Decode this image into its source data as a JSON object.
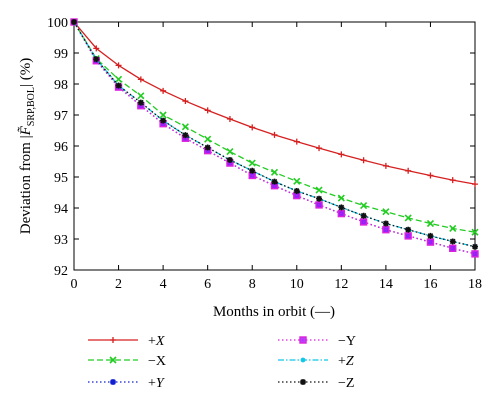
{
  "chart_data": {
    "type": "line",
    "xlabel": "Months in orbit (—)",
    "ylabel": "Deviation from |F̃|SRP,BOL (%)",
    "ylabel_main": "Deviation from |",
    "ylabel_symbol": "F̃",
    "ylabel_sub": "SRP,BOL",
    "ylabel_tail": "| (%)",
    "xlim": [
      0,
      18
    ],
    "ylim": [
      92,
      100
    ],
    "xticks": [
      0,
      2,
      4,
      6,
      8,
      10,
      12,
      14,
      16,
      18
    ],
    "yticks": [
      92,
      93,
      94,
      95,
      96,
      97,
      98,
      99,
      100
    ],
    "grid": false,
    "legend_position": "below",
    "x": [
      0,
      1,
      2,
      3,
      4,
      5,
      6,
      7,
      8,
      9,
      10,
      11,
      12,
      13,
      14,
      15,
      16,
      17,
      18
    ],
    "series": [
      {
        "name": "+X",
        "color": "#d62020",
        "marker": "plus",
        "dash": "solid",
        "values": [
          100,
          99.15,
          98.6,
          98.15,
          97.78,
          97.45,
          97.15,
          96.87,
          96.6,
          96.36,
          96.14,
          95.93,
          95.73,
          95.54,
          95.36,
          95.2,
          95.05,
          94.9,
          94.77
        ]
      },
      {
        "name": "−X",
        "color": "#22cc22",
        "marker": "x",
        "dash": "dashed",
        "values": [
          100,
          98.82,
          98.15,
          97.62,
          97.0,
          96.62,
          96.22,
          95.82,
          95.45,
          95.15,
          94.86,
          94.58,
          94.32,
          94.08,
          93.88,
          93.68,
          93.5,
          93.34,
          93.22
        ]
      },
      {
        "name": "+Y",
        "color": "#1020d0",
        "marker": "star",
        "dash": "dotted",
        "values": [
          100,
          98.75,
          97.9,
          97.3,
          96.72,
          96.25,
          95.85,
          95.45,
          95.05,
          94.72,
          94.4,
          94.1,
          93.82,
          93.55,
          93.3,
          93.1,
          92.9,
          92.7,
          92.52
        ]
      },
      {
        "name": "−Y",
        "color": "#dd22dd",
        "marker": "square",
        "dash": "dotted",
        "values": [
          100,
          98.75,
          97.9,
          97.3,
          96.72,
          96.25,
          95.85,
          95.45,
          95.05,
          94.72,
          94.4,
          94.1,
          93.82,
          93.55,
          93.3,
          93.1,
          92.9,
          92.7,
          92.52
        ]
      },
      {
        "name": "+Z",
        "color": "#10c8e8",
        "marker": "dot",
        "dash": "dashdot",
        "values": [
          100,
          98.8,
          97.95,
          97.4,
          96.82,
          96.35,
          95.95,
          95.55,
          95.2,
          94.85,
          94.55,
          94.3,
          94.02,
          93.75,
          93.5,
          93.3,
          93.1,
          92.92,
          92.75
        ]
      },
      {
        "name": "−Z",
        "color": "#111111",
        "marker": "star",
        "dash": "dotted",
        "values": [
          100,
          98.8,
          97.95,
          97.4,
          96.82,
          96.35,
          95.95,
          95.55,
          95.2,
          94.85,
          94.55,
          94.3,
          94.02,
          93.75,
          93.5,
          93.3,
          93.1,
          92.92,
          92.75
        ]
      }
    ]
  }
}
